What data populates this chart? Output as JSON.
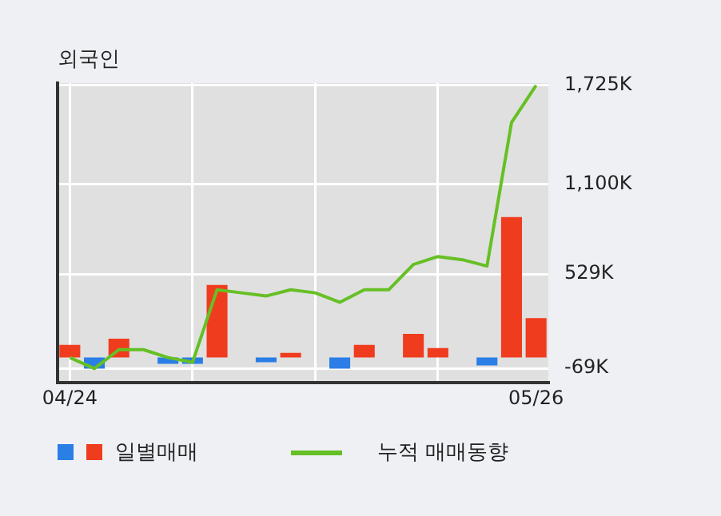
{
  "chart_data": {
    "type": "bar",
    "title": "외국인",
    "categories": [
      "04/24",
      null,
      null,
      null,
      null,
      null,
      null,
      null,
      null,
      null,
      null,
      null,
      null,
      null,
      null,
      null,
      null,
      null,
      null,
      "05/26"
    ],
    "series": [
      {
        "name": "일별매매",
        "colors": [
          "#f03c1e",
          "#2a7ee6",
          "#f03c1e",
          null,
          "#2a7ee6",
          "#2a7ee6",
          "#f03c1e",
          null,
          "#2a7ee6",
          "#f03c1e",
          null,
          "#2a7ee6",
          "#f03c1e",
          null,
          "#f03c1e",
          "#f03c1e",
          null,
          "#2a7ee6",
          "#f03c1e",
          "#f03c1e"
        ],
        "values": [
          80,
          -70,
          120,
          null,
          -40,
          -40,
          460,
          null,
          -30,
          30,
          null,
          -70,
          80,
          null,
          150,
          60,
          null,
          -50,
          890,
          250
        ]
      },
      {
        "name": "누적 매매동향",
        "type": "line",
        "color": "#66c025",
        "values": [
          0,
          -70,
          50,
          50,
          0,
          -30,
          430,
          410,
          390,
          430,
          410,
          350,
          430,
          430,
          590,
          640,
          620,
          580,
          1490,
          1725
        ]
      }
    ],
    "ylim": [
      -160,
      1740
    ],
    "yticks": [
      {
        "value": -69,
        "label": "-69K"
      },
      {
        "value": 529,
        "label": "529K"
      },
      {
        "value": 1100,
        "label": "1,100K"
      },
      {
        "value": 1725,
        "label": "1,725K"
      }
    ],
    "grid": true,
    "legend": "bottom",
    "marker": "none"
  }
}
